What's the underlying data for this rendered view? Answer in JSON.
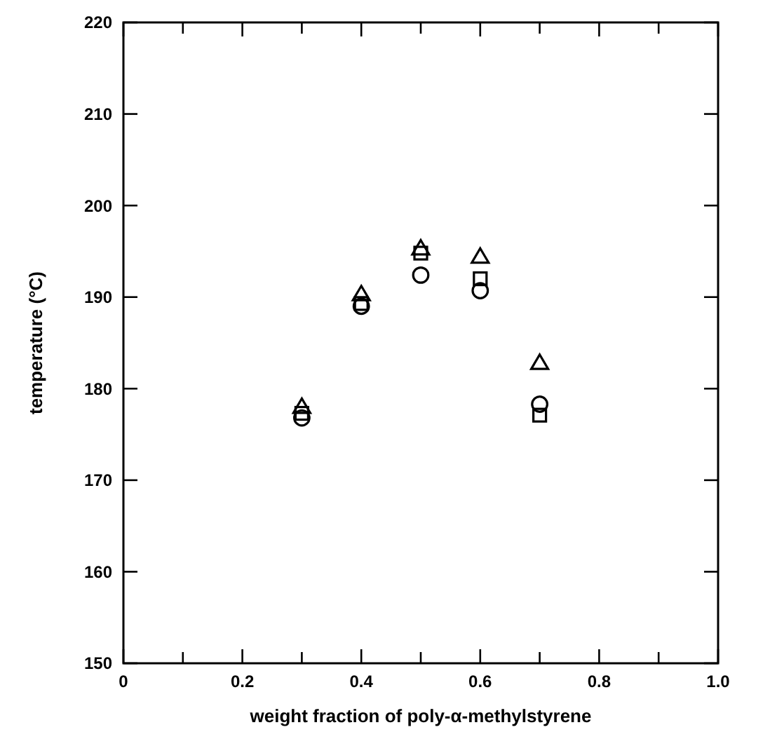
{
  "chart_data": {
    "type": "scatter",
    "xlabel": "weight fraction of poly-α-methylstyrene",
    "ylabel": "temperature (°C)",
    "xlim": [
      0,
      1.0
    ],
    "ylim": [
      150,
      220
    ],
    "xticks": [
      0,
      {
        "value": 0.1,
        "label": null
      },
      0.2,
      {
        "value": 0.3,
        "label": null
      },
      0.4,
      {
        "value": 0.5,
        "label": null
      },
      0.6,
      {
        "value": 0.7,
        "label": null
      },
      0.8,
      {
        "value": 0.9,
        "label": null
      },
      {
        "value": 1.0,
        "label": "1.0"
      }
    ],
    "yticks": [
      150,
      160,
      170,
      180,
      190,
      200,
      210,
      220
    ],
    "series": [
      {
        "color": "#000000",
        "marker": "triangle",
        "x": [
          0.3,
          0.4,
          0.5,
          0.6,
          0.7
        ],
        "values": [
          178,
          190.3,
          195.3,
          194.4,
          182.8
        ]
      },
      {
        "color": "#000000",
        "marker": "square",
        "x": [
          0.3,
          0.4,
          0.5,
          0.6,
          0.7
        ],
        "values": [
          177.3,
          189.3,
          194.8,
          192.0,
          177.1
        ]
      },
      {
        "color": "#000000",
        "marker": "circle",
        "x": [
          0.3,
          0.4,
          0.5,
          0.6,
          0.7
        ],
        "values": [
          176.8,
          189.0,
          192.4,
          190.7,
          178.3
        ]
      }
    ]
  }
}
